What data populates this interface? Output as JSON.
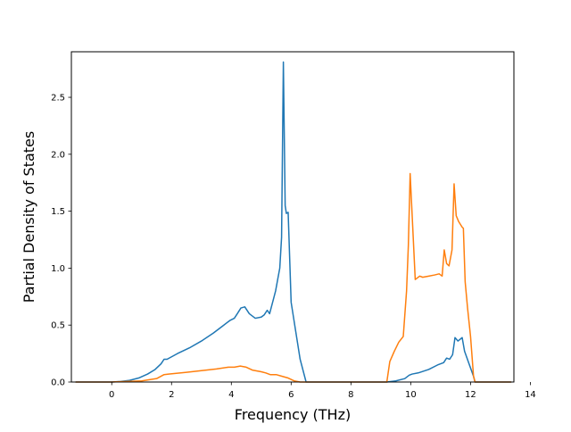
{
  "chart_data": {
    "type": "line",
    "title": "",
    "xlabel": "Frequency (THz)",
    "ylabel": "Partial Density of States",
    "xlim": [
      -1.35,
      13.45
    ],
    "ylim": [
      0,
      2.9
    ],
    "xticks": [
      0,
      2,
      4,
      6,
      8,
      10,
      12,
      14
    ],
    "yticks": [
      0.0,
      0.5,
      1.0,
      1.5,
      2.0,
      2.5
    ],
    "xtick_labels": [
      "0",
      "2",
      "4",
      "6",
      "8",
      "10",
      "12",
      "14"
    ],
    "ytick_labels": [
      "0.0",
      "0.5",
      "1.0",
      "1.5",
      "2.0",
      "2.5"
    ],
    "grid": false,
    "legend": false,
    "series": [
      {
        "color": "#1f77b4",
        "x": [
          -1.2,
          0.0,
          0.3,
          0.6,
          0.9,
          1.2,
          1.45,
          1.65,
          1.75,
          1.85,
          2.2,
          2.6,
          3.0,
          3.4,
          3.7,
          3.95,
          4.1,
          4.2,
          4.32,
          4.45,
          4.6,
          4.8,
          5.0,
          5.1,
          5.2,
          5.28,
          5.4,
          5.48,
          5.55,
          5.62,
          5.68,
          5.74,
          5.8,
          5.84,
          5.9,
          6.0,
          6.15,
          6.3,
          6.5,
          9.2,
          9.5,
          9.8,
          9.95,
          10.05,
          10.25,
          10.6,
          10.9,
          11.1,
          11.2,
          11.3,
          11.4,
          11.48,
          11.58,
          11.72,
          11.8,
          11.95,
          12.1,
          12.15,
          12.3,
          13.35
        ],
        "y": [
          0.0,
          0.0,
          0.005,
          0.015,
          0.035,
          0.07,
          0.11,
          0.16,
          0.2,
          0.2,
          0.25,
          0.3,
          0.36,
          0.43,
          0.49,
          0.54,
          0.56,
          0.6,
          0.65,
          0.66,
          0.6,
          0.56,
          0.57,
          0.59,
          0.63,
          0.6,
          0.72,
          0.8,
          0.9,
          1.0,
          1.27,
          2.81,
          1.55,
          1.48,
          1.49,
          0.7,
          0.45,
          0.2,
          0.0,
          0.0,
          0.01,
          0.03,
          0.06,
          0.07,
          0.08,
          0.11,
          0.15,
          0.17,
          0.21,
          0.2,
          0.24,
          0.39,
          0.36,
          0.39,
          0.27,
          0.16,
          0.05,
          0.0,
          0.0,
          0.0
        ]
      },
      {
        "color": "#ff7f0e",
        "x": [
          -1.2,
          0.0,
          0.5,
          1.0,
          1.5,
          1.75,
          1.9,
          2.5,
          3.0,
          3.5,
          3.9,
          4.1,
          4.3,
          4.5,
          4.7,
          5.0,
          5.15,
          5.3,
          5.5,
          5.7,
          5.9,
          6.1,
          6.3,
          6.5,
          9.2,
          9.3,
          9.45,
          9.6,
          9.75,
          9.86,
          9.92,
          9.98,
          10.05,
          10.15,
          10.3,
          10.4,
          10.6,
          10.8,
          10.95,
          11.05,
          11.12,
          11.2,
          11.28,
          11.38,
          11.45,
          11.52,
          11.6,
          11.72,
          11.76,
          11.82,
          11.9,
          12.0,
          12.1,
          12.15,
          12.3,
          13.35
        ],
        "y": [
          0.0,
          0.0,
          0.005,
          0.01,
          0.03,
          0.065,
          0.07,
          0.085,
          0.1,
          0.115,
          0.13,
          0.13,
          0.14,
          0.13,
          0.105,
          0.09,
          0.08,
          0.065,
          0.065,
          0.05,
          0.035,
          0.01,
          0.0,
          0.0,
          0.0,
          0.18,
          0.27,
          0.35,
          0.4,
          0.8,
          1.2,
          1.83,
          1.45,
          0.9,
          0.93,
          0.92,
          0.93,
          0.94,
          0.95,
          0.93,
          1.16,
          1.04,
          1.02,
          1.16,
          1.74,
          1.46,
          1.41,
          1.36,
          1.35,
          0.88,
          0.65,
          0.4,
          0.05,
          0.0,
          0.0,
          0.0
        ]
      }
    ]
  }
}
